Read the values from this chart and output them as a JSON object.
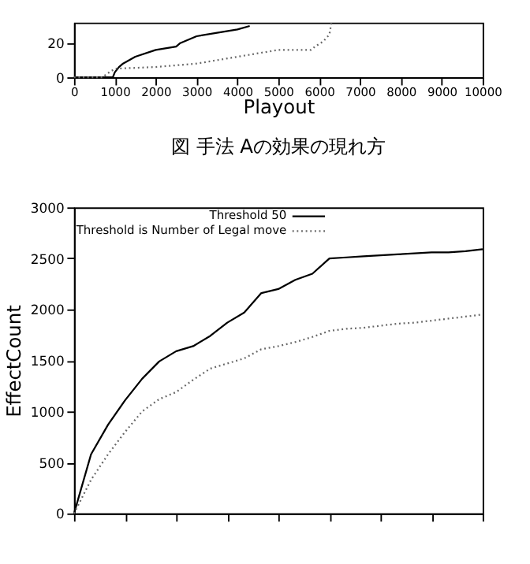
{
  "chart_data": [
    {
      "type": "line",
      "xlabel": "Playout",
      "title": "図 手法 Aの効果の現れ方",
      "xlim": [
        0,
        10000
      ],
      "xticks": [
        0,
        1000,
        2000,
        3000,
        4000,
        5000,
        6000,
        7000,
        8000,
        9000,
        10000
      ],
      "ylim": [
        0,
        32
      ],
      "yticks": [
        0,
        20
      ],
      "series": [
        {
          "color": "#000000",
          "line_style": "solid",
          "x": [
            0,
            950,
            1000,
            1100,
            1200,
            1500,
            2000,
            2500,
            2600,
            3000,
            3500,
            4000,
            4300
          ],
          "values": [
            0,
            0,
            3,
            6,
            8,
            12,
            16,
            18,
            20,
            24,
            26,
            28,
            30
          ]
        },
        {
          "color": "#666666",
          "line_style": "dotted",
          "x": [
            0,
            700,
            800,
            1000,
            2000,
            3000,
            4000,
            4500,
            5000,
            5800,
            5900,
            6100,
            6250,
            6300
          ],
          "values": [
            0,
            0,
            2,
            5,
            6,
            8,
            12,
            14,
            16,
            16,
            18,
            21,
            25,
            32
          ]
        }
      ]
    },
    {
      "type": "line",
      "ylabel": "EffectCount",
      "categories": [
        null,
        null,
        null,
        null,
        null,
        null,
        null,
        null,
        null,
        null,
        null,
        null,
        null,
        null,
        null,
        null,
        null,
        null,
        null,
        null,
        null,
        null,
        null,
        null,
        null
      ],
      "ylim": [
        0,
        3000
      ],
      "yticks": [
        0,
        500,
        1000,
        1500,
        2000,
        2500,
        3000
      ],
      "tick_labels": "y",
      "legend": "top",
      "series": [
        {
          "name": "Threshold 50",
          "color": "#000000",
          "line_style": "solid",
          "values": [
            0,
            580,
            870,
            1110,
            1320,
            1490,
            1590,
            1640,
            1740,
            1870,
            1970,
            2160,
            2200,
            2290,
            2350,
            2500,
            2510,
            2520,
            2530,
            2540,
            2550,
            2560,
            2560,
            2570,
            2590
          ]
        },
        {
          "name": "Threshold is Number of Legal move",
          "color": "#666666",
          "line_style": "dotted",
          "values": [
            0,
            330,
            580,
            800,
            1000,
            1120,
            1190,
            1310,
            1420,
            1470,
            1520,
            1610,
            1640,
            1680,
            1730,
            1790,
            1810,
            1820,
            1840,
            1860,
            1870,
            1890,
            1910,
            1930,
            1950
          ]
        }
      ]
    }
  ]
}
